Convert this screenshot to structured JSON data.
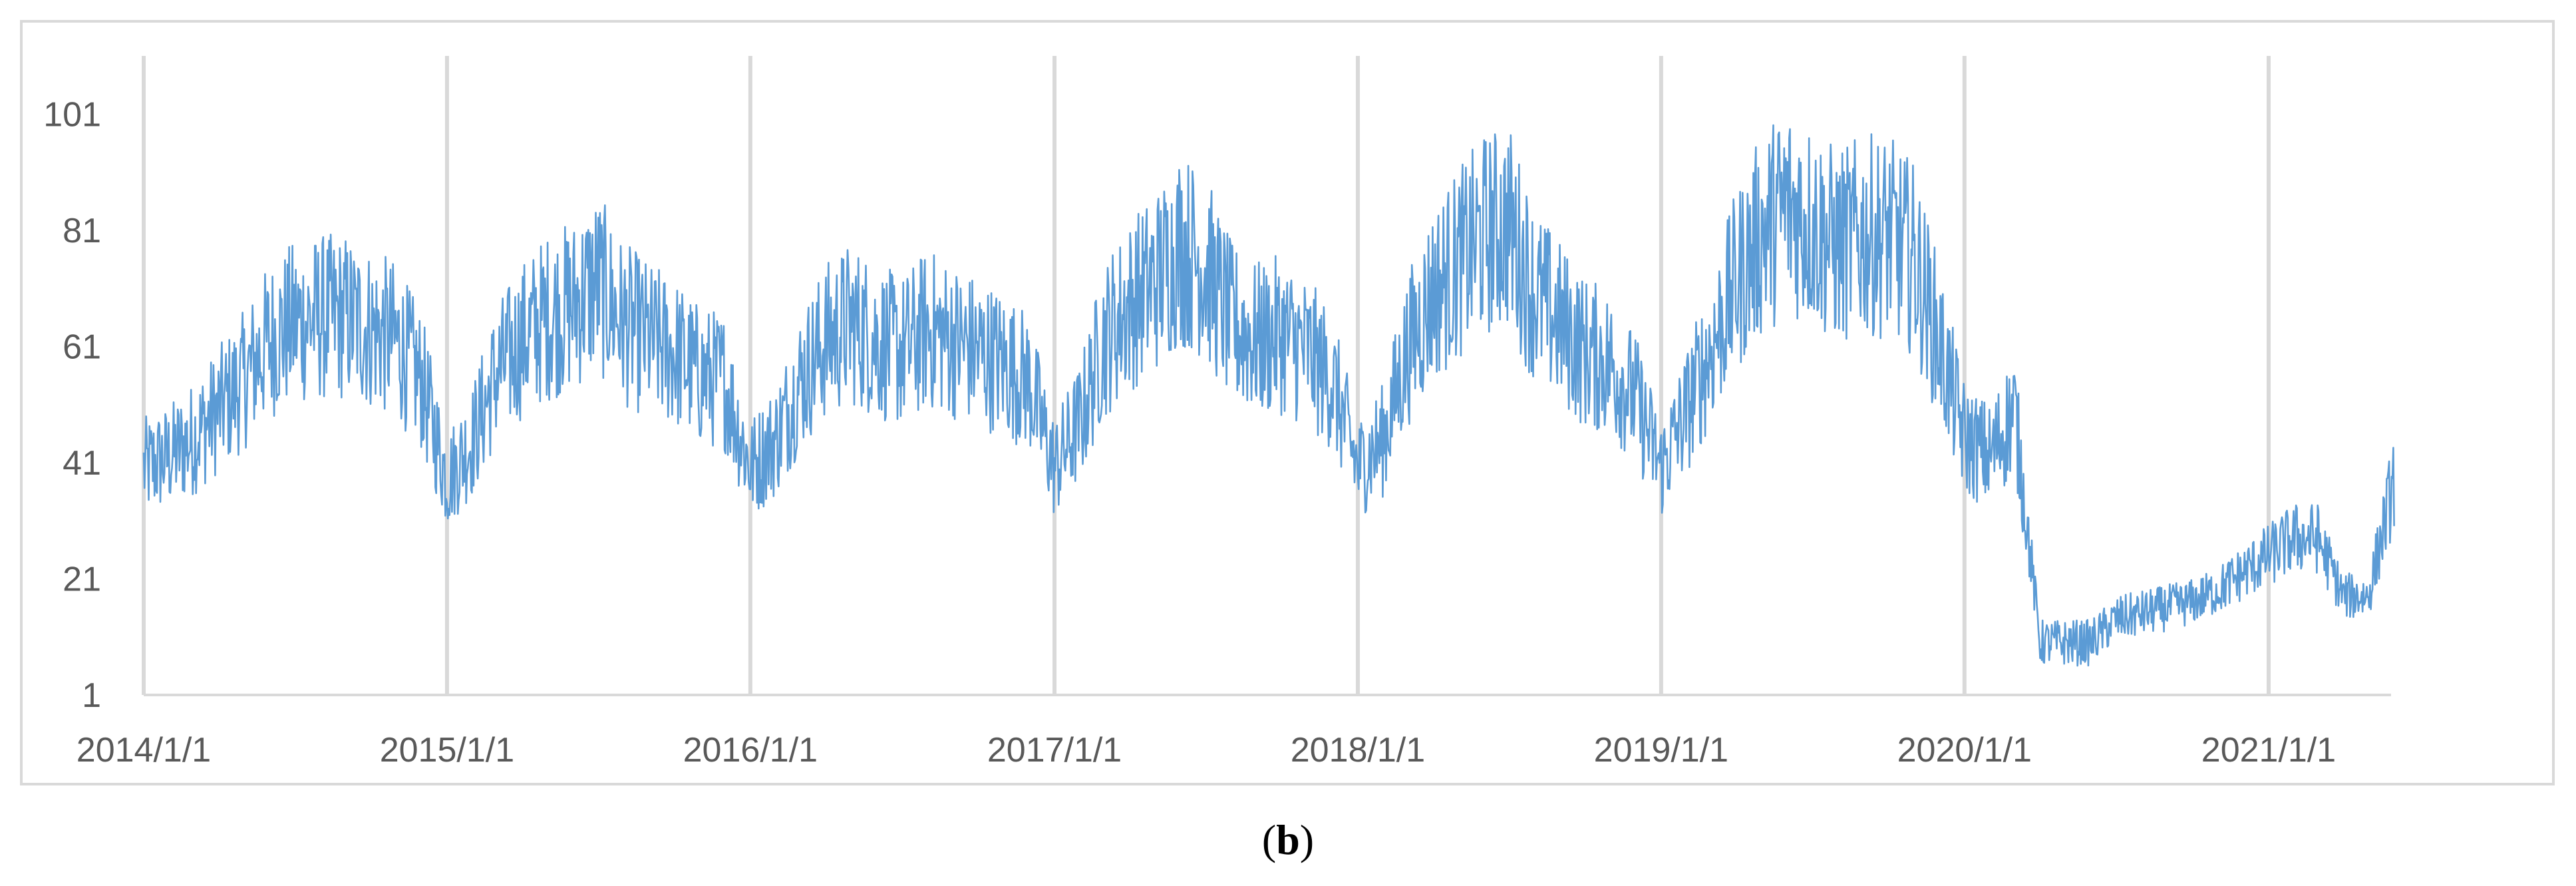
{
  "chart_data": {
    "type": "line",
    "title": "",
    "xlabel": "",
    "ylabel": "",
    "x_range": [
      "2014-01-01",
      "2021-06-01"
    ],
    "ylim": [
      1,
      111
    ],
    "yticks": [
      1,
      21,
      41,
      61,
      81,
      101
    ],
    "xticks": [
      "2014/1/1",
      "2015/1/1",
      "2016/1/1",
      "2017/1/1",
      "2018/1/1",
      "2019/1/1",
      "2020/1/1",
      "2021/1/1"
    ],
    "grid": "vertical",
    "legend": "none",
    "series": [
      {
        "color": "#5b9bd5",
        "x": [
          "2014-01-01",
          "2014-02-01",
          "2014-03-01",
          "2014-04-01",
          "2014-05-01",
          "2014-06-01",
          "2014-07-01",
          "2014-08-01",
          "2014-09-01",
          "2014-10-01",
          "2014-11-01",
          "2014-12-01",
          "2015-01-01",
          "2015-02-01",
          "2015-03-01",
          "2015-04-01",
          "2015-05-01",
          "2015-06-01",
          "2015-07-01",
          "2015-08-01",
          "2015-09-01",
          "2015-10-01",
          "2015-11-01",
          "2015-12-01",
          "2016-01-01",
          "2016-02-01",
          "2016-03-01",
          "2016-04-01",
          "2016-05-01",
          "2016-06-01",
          "2016-07-01",
          "2016-08-01",
          "2016-09-01",
          "2016-10-01",
          "2016-11-01",
          "2016-12-01",
          "2017-01-01",
          "2017-02-01",
          "2017-03-01",
          "2017-04-01",
          "2017-05-01",
          "2017-06-01",
          "2017-07-01",
          "2017-08-01",
          "2017-09-01",
          "2017-10-01",
          "2017-11-01",
          "2017-12-01",
          "2018-01-01",
          "2018-02-01",
          "2018-03-01",
          "2018-04-01",
          "2018-05-01",
          "2018-06-01",
          "2018-07-01",
          "2018-08-01",
          "2018-09-01",
          "2018-10-01",
          "2018-11-01",
          "2018-12-01",
          "2019-01-01",
          "2019-02-01",
          "2019-03-01",
          "2019-04-01",
          "2019-05-01",
          "2019-06-01",
          "2019-07-01",
          "2019-08-01",
          "2019-09-01",
          "2019-10-01",
          "2019-11-01",
          "2019-12-01",
          "2020-01-01",
          "2020-02-01",
          "2020-03-01",
          "2020-04-01",
          "2020-05-01",
          "2020-06-01",
          "2020-07-01",
          "2020-08-01",
          "2020-09-01",
          "2020-10-01",
          "2020-11-01",
          "2020-12-01",
          "2021-01-01",
          "2021-02-01",
          "2021-03-01",
          "2021-04-01",
          "2021-05-01",
          "2021-06-01"
        ],
        "values": [
          40,
          42,
          45,
          50,
          55,
          62,
          65,
          66,
          66,
          64,
          62,
          55,
          38,
          45,
          56,
          62,
          66,
          68,
          72,
          65,
          62,
          60,
          56,
          55,
          40,
          45,
          55,
          62,
          65,
          62,
          60,
          64,
          62,
          60,
          58,
          55,
          40,
          48,
          62,
          68,
          72,
          78,
          75,
          65,
          62,
          63,
          60,
          55,
          40,
          45,
          60,
          70,
          75,
          80,
          82,
          70,
          65,
          60,
          58,
          52,
          40,
          50,
          60,
          72,
          80,
          85,
          82,
          78,
          80,
          80,
          76,
          62,
          45,
          42,
          50,
          10,
          10,
          10,
          14,
          15,
          16,
          17,
          19,
          22,
          25,
          28,
          28,
          18,
          18,
          38
        ]
      }
    ]
  },
  "caption": {
    "letter": "b"
  }
}
